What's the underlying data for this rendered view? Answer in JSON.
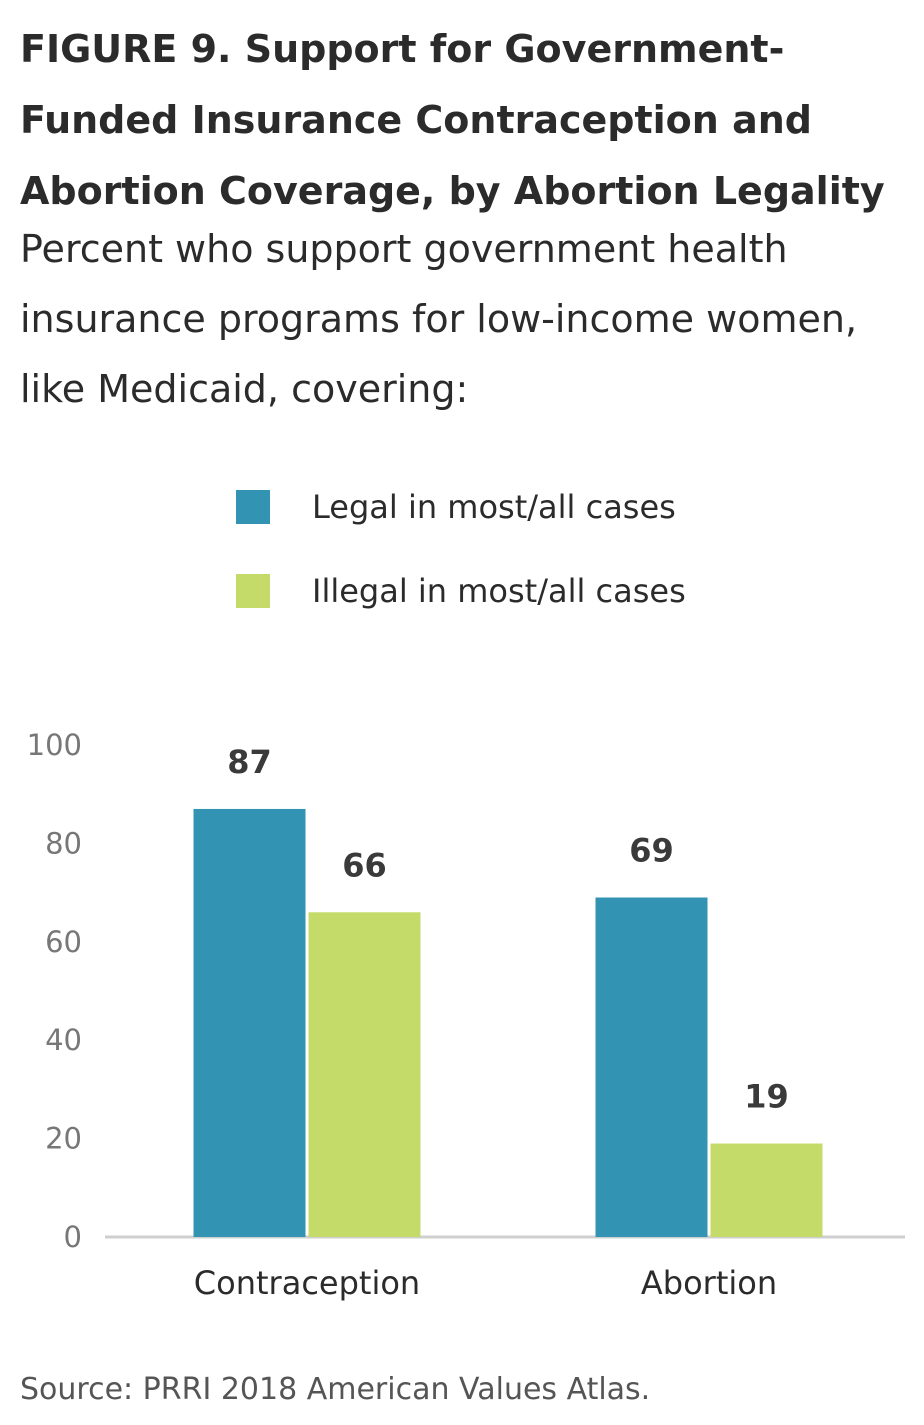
{
  "title": "FIGURE 9. Support for Government-Funded Insurance Contraception and Abortion Coverage, by Abortion Legality",
  "subtitle": "Percent who support government health insurance programs for low-income women, like Medicaid, covering:",
  "source": "Source: PRRI 2018 American Values Atlas.",
  "chart_data": {
    "type": "bar",
    "categories": [
      "Contraception",
      "Abortion"
    ],
    "series": [
      {
        "name": "Legal in most/all cases",
        "values": [
          87,
          69
        ],
        "color": "#3393b3"
      },
      {
        "name": "Illegal in most/all cases",
        "values": [
          66,
          19
        ],
        "color": "#c4db6a"
      }
    ],
    "yticks": [
      "0",
      "20",
      "40",
      "60",
      "80",
      "100"
    ],
    "ylim": [
      0,
      100
    ],
    "legend_position": "top-center",
    "grid": false,
    "data_labels": true
  }
}
